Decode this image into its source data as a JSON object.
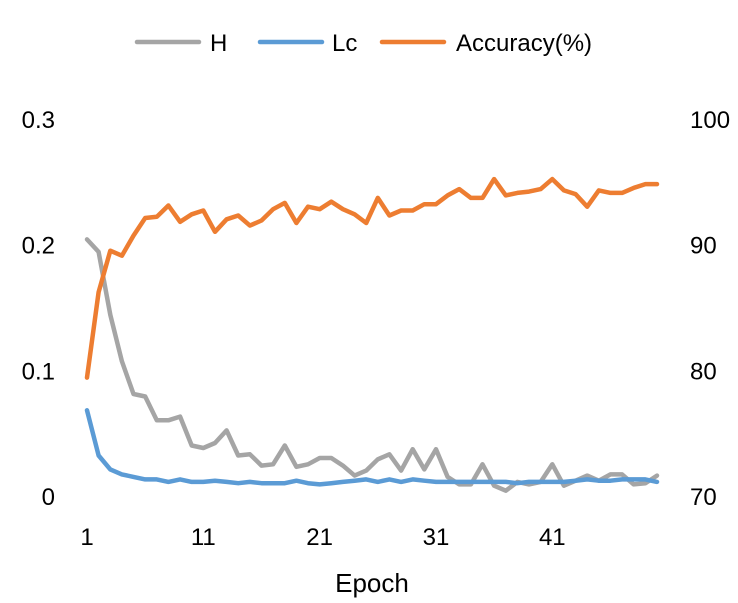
{
  "chart_data": {
    "type": "line",
    "xlabel": "Epoch",
    "x": [
      1,
      2,
      3,
      4,
      5,
      6,
      7,
      8,
      9,
      10,
      11,
      12,
      13,
      14,
      15,
      16,
      17,
      18,
      19,
      20,
      21,
      22,
      23,
      24,
      25,
      26,
      27,
      28,
      29,
      30,
      31,
      32,
      33,
      34,
      35,
      36,
      37,
      38,
      39,
      40,
      41,
      42,
      43,
      44,
      45,
      46,
      47,
      48,
      49,
      50
    ],
    "x_ticks": [
      "1",
      "11",
      "21",
      "31",
      "41"
    ],
    "x_tick_values": [
      1,
      11,
      21,
      31,
      41
    ],
    "y_left": {
      "ylim": [
        0,
        0.3
      ],
      "ticks": [
        "0",
        "0.1",
        "0.2",
        "0.3"
      ],
      "tick_values": [
        0,
        0.1,
        0.2,
        0.3
      ]
    },
    "y_right": {
      "ylim": [
        70,
        100
      ],
      "ticks": [
        "70",
        "80",
        "90",
        "100"
      ],
      "tick_values": [
        70,
        80,
        90,
        100
      ]
    },
    "legend_position": "top",
    "gridlines": false,
    "series": [
      {
        "name": "H",
        "axis": "left",
        "color": "#a5a5a5",
        "values": [
          0.205,
          0.195,
          0.145,
          0.108,
          0.082,
          0.08,
          0.061,
          0.061,
          0.064,
          0.041,
          0.039,
          0.043,
          0.053,
          0.033,
          0.034,
          0.025,
          0.026,
          0.041,
          0.024,
          0.026,
          0.031,
          0.031,
          0.025,
          0.017,
          0.021,
          0.03,
          0.034,
          0.021,
          0.038,
          0.022,
          0.038,
          0.016,
          0.01,
          0.01,
          0.026,
          0.009,
          0.005,
          0.012,
          0.01,
          0.012,
          0.026,
          0.009,
          0.013,
          0.017,
          0.013,
          0.018,
          0.018,
          0.01,
          0.011,
          0.017
        ]
      },
      {
        "name": "Lc",
        "axis": "left",
        "color": "#5b9bd5",
        "values": [
          0.069,
          0.033,
          0.022,
          0.018,
          0.016,
          0.014,
          0.014,
          0.012,
          0.014,
          0.012,
          0.012,
          0.013,
          0.012,
          0.011,
          0.012,
          0.011,
          0.011,
          0.011,
          0.013,
          0.011,
          0.01,
          0.011,
          0.012,
          0.013,
          0.014,
          0.012,
          0.014,
          0.012,
          0.014,
          0.013,
          0.012,
          0.012,
          0.012,
          0.012,
          0.012,
          0.012,
          0.012,
          0.011,
          0.012,
          0.012,
          0.012,
          0.012,
          0.013,
          0.014,
          0.013,
          0.013,
          0.014,
          0.014,
          0.014,
          0.012
        ]
      },
      {
        "name": "Accuracy(%)",
        "axis": "right",
        "color": "#ed7d31",
        "values": [
          79.5,
          86.3,
          89.6,
          89.2,
          90.8,
          92.2,
          92.3,
          93.2,
          91.9,
          92.5,
          92.8,
          91.1,
          92.1,
          92.4,
          91.6,
          92.0,
          92.9,
          93.4,
          91.8,
          93.1,
          92.9,
          93.5,
          92.9,
          92.5,
          91.8,
          93.8,
          92.4,
          92.8,
          92.8,
          93.3,
          93.3,
          94.0,
          94.5,
          93.8,
          93.8,
          95.3,
          94.0,
          94.2,
          94.3,
          94.5,
          95.3,
          94.4,
          94.1,
          93.1,
          94.4,
          94.2,
          94.2,
          94.6,
          94.9,
          94.9
        ]
      }
    ]
  }
}
